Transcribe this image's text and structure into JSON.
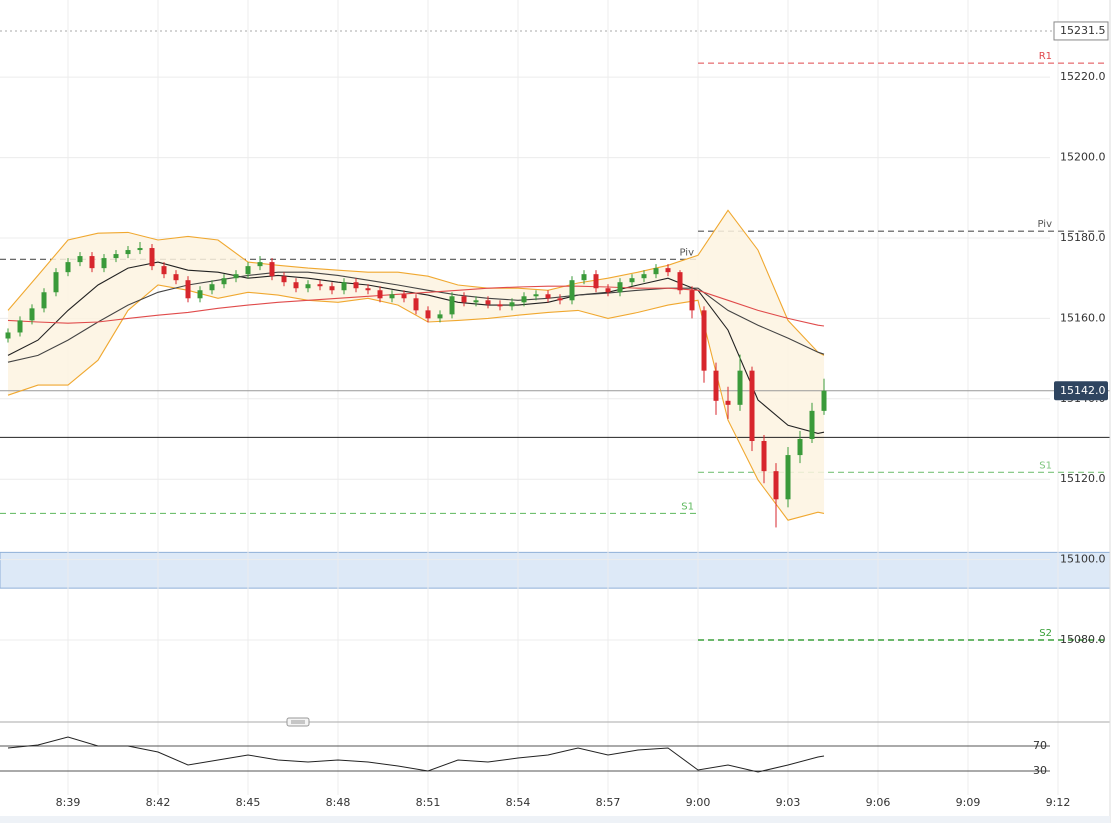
{
  "chart_data": {
    "type": "candlestick",
    "x": [
      517,
      517.4,
      517.8,
      518.2,
      518.6,
      519,
      519.4,
      519.8,
      520.2,
      520.6,
      521,
      521.4,
      521.8,
      522.2,
      522.6,
      523,
      523.4,
      523.8,
      524.2,
      524.6,
      525,
      525.4,
      525.8,
      526.2,
      526.6,
      527,
      527.4,
      527.8,
      528.2,
      528.6,
      529,
      529.4,
      529.8,
      530.2,
      530.6,
      531,
      531.4,
      531.8,
      532.2,
      532.6,
      533,
      533.4,
      533.8,
      534.2,
      534.6,
      535,
      535.4,
      535.8,
      536.2,
      536.6,
      537,
      537.4,
      537.8,
      538.2,
      538.6,
      539,
      539.4,
      539.8,
      540.2,
      540.6,
      541,
      541.4,
      541.8,
      542.2,
      542.6,
      543,
      543.4,
      543.8,
      544.2
    ],
    "open": [
      15155,
      15156.5,
      15159.5,
      15162.5,
      15166.5,
      15171.5,
      15174,
      15175.5,
      15172.5,
      15175,
      15176,
      15177,
      15177.5,
      15173,
      15171,
      15169.5,
      15165,
      15167,
      15168.5,
      15170,
      15171,
      15173,
      15174,
      15170.5,
      15169,
      15167.5,
      15168.5,
      15168,
      15167,
      15169,
      15167.5,
      15167,
      15165,
      15166,
      15165,
      15162,
      15160,
      15161,
      15165.5,
      15164,
      15164.5,
      15163.5,
      15163,
      15164,
      15165.5,
      15166,
      15165,
      15164.5,
      15169.5,
      15171,
      15167.5,
      15166.5,
      15169,
      15170,
      15171,
      15172.5,
      15171.5,
      15167,
      15162,
      15147,
      15139.5,
      15138.5,
      15147,
      15129.5,
      15122,
      15115,
      15126,
      15130,
      15137
    ],
    "high": [
      15157.5,
      15160.5,
      15163.5,
      15167.5,
      15172.5,
      15175,
      15176.5,
      15176.5,
      15176,
      15177,
      15178,
      15179,
      15178.5,
      15174,
      15172,
      15170.5,
      15168,
      15169.5,
      15171,
      15172,
      15174,
      15175.5,
      15175,
      15171.5,
      15170,
      15169.5,
      15169.5,
      15169,
      15170,
      15170,
      15168.5,
      15168,
      15167,
      15167,
      15166,
      15163,
      15162,
      15166.5,
      15166.5,
      15165.5,
      15165.5,
      15164.5,
      15165,
      15166.5,
      15167,
      15167,
      15166,
      15170.5,
      15172,
      15172,
      15168.5,
      15170,
      15171,
      15172,
      15173.5,
      15173.5,
      15172,
      15168,
      15163,
      15149,
      15143,
      15151,
      15148,
      15131,
      15124,
      15128,
      15132,
      15139,
      15145
    ],
    "low": [
      15154,
      15155.5,
      15158.5,
      15161.5,
      15165.5,
      15170.5,
      15173,
      15171.5,
      15171.5,
      15174,
      15175,
      15176,
      15172,
      15170,
      15168.5,
      15164,
      15164,
      15166,
      15167.5,
      15169,
      15170,
      15172,
      15169.5,
      15168,
      15166.5,
      15166.5,
      15167,
      15166,
      15166,
      15166.5,
      15166,
      15164,
      15164,
      15164,
      15161,
      15159,
      15159,
      15160,
      15163,
      15163,
      15162.5,
      15162,
      15162,
      15163,
      15164.5,
      15164,
      15163.5,
      15163.5,
      15168.5,
      15166.5,
      15165.5,
      15165.5,
      15168,
      15169,
      15170,
      15170.5,
      15166,
      15160,
      15144,
      15136,
      15135,
      15137,
      15127,
      15119,
      15108,
      15113,
      15124,
      15129,
      15136
    ],
    "close": [
      15156.5,
      15159.5,
      15162.5,
      15166.5,
      15171.5,
      15174,
      15175.5,
      15172.5,
      15175,
      15176,
      15177,
      15177.5,
      15173,
      15171,
      15169.5,
      15165,
      15167,
      15168.5,
      15170,
      15171,
      15173,
      15174,
      15170.5,
      15169,
      15167.5,
      15168.5,
      15168,
      15167,
      15169,
      15167.5,
      15167,
      15165,
      15166,
      15165,
      15162,
      15160,
      15161,
      15165.5,
      15164,
      15164.5,
      15163.5,
      15163,
      15164,
      15165.5,
      15166,
      15165,
      15164.5,
      15169.5,
      15171,
      15167.5,
      15166.5,
      15169,
      15170,
      15171,
      15172.5,
      15171.5,
      15167,
      15162,
      15147,
      15139.5,
      15138.5,
      15147,
      15129.5,
      15122,
      15115,
      15126,
      15130,
      15137,
      15142
    ],
    "up_color": "#3a9a3a",
    "down_color": "#d7262d",
    "xlim": [
      516.733,
      553.733
    ],
    "xticks": [
      {
        "value": 519,
        "label": "8:39"
      },
      {
        "value": 522,
        "label": "8:42"
      },
      {
        "value": 525,
        "label": "8:45"
      },
      {
        "value": 528,
        "label": "8:48"
      },
      {
        "value": 531,
        "label": "8:51"
      },
      {
        "value": 534,
        "label": "8:54"
      },
      {
        "value": 537,
        "label": "8:57"
      },
      {
        "value": 540,
        "label": "9:00"
      },
      {
        "value": 543,
        "label": "9:03"
      },
      {
        "value": 546,
        "label": "9:06"
      },
      {
        "value": 549,
        "label": "9:09"
      },
      {
        "value": 552,
        "label": "9:12"
      }
    ],
    "ylim": [
      15060.1,
      15239.2
    ],
    "yticks": [
      {
        "value": 15080,
        "label": "15080.0"
      },
      {
        "value": 15100,
        "label": "15100.0"
      },
      {
        "value": 15120,
        "label": "15120.0"
      },
      {
        "value": 15140,
        "label": "15140.0"
      },
      {
        "value": 15160,
        "label": "15160.0"
      },
      {
        "value": 15180,
        "label": "15180.0"
      },
      {
        "value": 15200,
        "label": "15200.0"
      },
      {
        "value": 15220,
        "label": "15220.0"
      }
    ],
    "grid": true,
    "zone": [
      15092.9,
      15101.8
    ],
    "hline": 15130.4,
    "high_marker": 15231.5,
    "last_price": {
      "value": 15142,
      "label": "15142.0"
    },
    "levels": [
      {
        "label": "R1",
        "value": 15223.5,
        "from": 540,
        "color": "#e0474c"
      },
      {
        "label": "Piv",
        "value": 15174.7,
        "to": 540,
        "color": "#555555"
      },
      {
        "label": "Piv",
        "value": 15181.7,
        "from": 540,
        "color": "#555555"
      },
      {
        "label": "S1",
        "value": 15111.5,
        "to": 540,
        "color": "#5cb85c"
      },
      {
        "label": "S1",
        "value": 15121.7,
        "from": 540,
        "color": "#7cc47c"
      },
      {
        "label": "S2",
        "value": 15080,
        "from": 540,
        "color": "#3aa03a"
      }
    ],
    "indicators": {
      "x": [
        517,
        518,
        519,
        520,
        521,
        522,
        523,
        524,
        525,
        526,
        527,
        528,
        529,
        530,
        531,
        532,
        533,
        534,
        535,
        536,
        537,
        538,
        539,
        540,
        541,
        542,
        543,
        544,
        544.2
      ],
      "band_fill": "#fdf3e1",
      "series": [
        {
          "color": "#f0a830",
          "values": [
            15162,
            15170.7,
            15179.5,
            15181.2,
            15181.4,
            15179.5,
            15180.4,
            15179.5,
            15174,
            15173.2,
            15172.5,
            15172,
            15171.5,
            15171.5,
            15170.5,
            15168.3,
            15167.5,
            15167.5,
            15167,
            15168.8,
            15170,
            15171.5,
            15173.2,
            15175.7,
            15186.9,
            15177,
            15159.5,
            15151.6,
            15150.8
          ]
        },
        {
          "color": "#f0a830",
          "values": [
            15140.9,
            15143.4,
            15143.4,
            15149.6,
            15162,
            15168.3,
            15167,
            15165,
            15166.5,
            15165.8,
            15164.5,
            15164,
            15165,
            15163.3,
            15159.1,
            15159.5,
            15160,
            15160.8,
            15161.5,
            15162,
            15160,
            15161.5,
            15163.3,
            15164.5,
            15134.7,
            15119.8,
            15109.8,
            15111.8,
            15111.5
          ]
        },
        {
          "color": "#222222",
          "values": [
            15150.8,
            15154.6,
            15162,
            15168.3,
            15172.5,
            15174,
            15172,
            15171.5,
            15170,
            15170.7,
            15170,
            15169,
            15168.3,
            15167,
            15165.8,
            15164,
            15163.3,
            15163.3,
            15164,
            15165.8,
            15166.5,
            15168.3,
            15170,
            15167,
            15157.1,
            15139.7,
            15133.4,
            15131.4,
            15131.7
          ]
        },
        {
          "color": "#444444",
          "values": [
            15149.1,
            15150.8,
            15154.6,
            15159.1,
            15163.3,
            15166.5,
            15168.3,
            15169.5,
            15170.7,
            15171.5,
            15171.5,
            15170.7,
            15169.5,
            15168.3,
            15167,
            15165.8,
            15165,
            15164.5,
            15165,
            15165.8,
            15166.3,
            15167,
            15167.5,
            15167.5,
            15162,
            15158.3,
            15155.1,
            15151.6,
            15151.1
          ]
        },
        {
          "color": "#e04b4b",
          "values": [
            15159.5,
            15159.1,
            15158.8,
            15159.1,
            15160,
            15160.8,
            15161.5,
            15162.5,
            15163.3,
            15164,
            15164.5,
            15165,
            15165.5,
            15166,
            15166.5,
            15167,
            15167.5,
            15167.8,
            15168,
            15168,
            15167.8,
            15167.5,
            15167.5,
            15167,
            15164.5,
            15162,
            15160,
            15158.3,
            15158.1
          ]
        }
      ],
      "rsi": {
        "color": "#222222",
        "ylim": [
          0,
          100
        ],
        "yticks": [
          30,
          70
        ],
        "values": [
          66.8,
          71.6,
          84.4,
          70,
          70,
          60.4,
          39.6,
          47.6,
          55.6,
          47.6,
          44.4,
          47.6,
          44.4,
          38,
          30,
          47.6,
          44.4,
          50.8,
          55.6,
          66.8,
          55.6,
          63.6,
          66.8,
          31.6,
          39.6,
          28.4,
          39.6,
          52.4,
          54
        ]
      }
    }
  }
}
